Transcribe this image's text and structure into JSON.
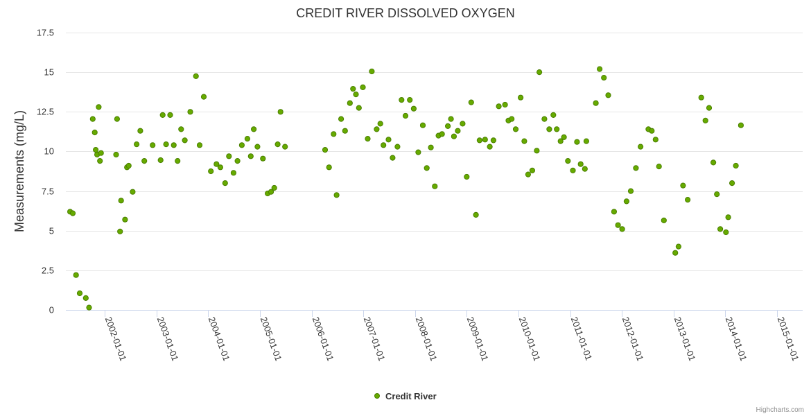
{
  "chart_data": {
    "type": "scatter",
    "title": "CREDIT RIVER DISSOLVED OXYGEN",
    "ylabel": "Measurements (mg/L)",
    "xlabel": "",
    "ylim": [
      0,
      17.5
    ],
    "xlim": [
      "2001-04-01",
      "2015-07-01"
    ],
    "yticks": [
      "0",
      "2.5",
      "5",
      "7.5",
      "10",
      "12.5",
      "15",
      "17.5"
    ],
    "ytick_values": [
      0,
      2.5,
      5,
      7.5,
      10,
      12.5,
      15,
      17.5
    ],
    "xticks": [
      "2002-01-01",
      "2003-01-01",
      "2004-01-01",
      "2005-01-01",
      "2006-01-01",
      "2007-01-01",
      "2008-01-01",
      "2009-01-01",
      "2010-01-01",
      "2011-01-01",
      "2012-01-01",
      "2013-01-01",
      "2014-01-01",
      "2015-01-01"
    ],
    "grid": true,
    "legend_placement": "bottom-center",
    "color": "#66aa00",
    "series": [
      {
        "name": "Credit River",
        "points": [
          [
            "2001-05-01",
            6.2
          ],
          [
            "2001-05-20",
            6.1
          ],
          [
            "2001-06-12",
            2.2
          ],
          [
            "2001-07-08",
            1.05
          ],
          [
            "2001-08-20",
            0.75
          ],
          [
            "2001-09-12",
            0.15
          ],
          [
            "2001-10-08",
            12.05
          ],
          [
            "2001-10-22",
            11.2
          ],
          [
            "2001-10-29",
            10.1
          ],
          [
            "2001-11-08",
            9.8
          ],
          [
            "2001-11-19",
            12.8
          ],
          [
            "2001-11-28",
            9.4
          ],
          [
            "2001-12-05",
            9.9
          ],
          [
            "2002-03-22",
            9.8
          ],
          [
            "2002-03-29",
            12.05
          ],
          [
            "2002-04-19",
            4.95
          ],
          [
            "2002-04-26",
            6.9
          ],
          [
            "2002-05-24",
            5.7
          ],
          [
            "2002-06-07",
            9.0
          ],
          [
            "2002-06-19",
            9.1
          ],
          [
            "2002-07-17",
            7.45
          ],
          [
            "2002-08-14",
            10.45
          ],
          [
            "2002-09-09",
            11.3
          ],
          [
            "2002-10-07",
            9.4
          ],
          [
            "2002-12-05",
            10.4
          ],
          [
            "2003-01-30",
            9.45
          ],
          [
            "2003-02-14",
            12.3
          ],
          [
            "2003-03-10",
            10.45
          ],
          [
            "2003-04-08",
            12.3
          ],
          [
            "2003-05-03",
            10.4
          ],
          [
            "2003-05-30",
            9.4
          ],
          [
            "2003-06-24",
            11.4
          ],
          [
            "2003-07-20",
            10.7
          ],
          [
            "2003-08-28",
            12.5
          ],
          [
            "2003-10-07",
            14.75
          ],
          [
            "2003-11-02",
            10.4
          ],
          [
            "2003-12-01",
            13.45
          ],
          [
            "2004-01-20",
            8.75
          ],
          [
            "2004-02-29",
            9.2
          ],
          [
            "2004-03-27",
            9.0
          ],
          [
            "2004-04-30",
            8.0
          ],
          [
            "2004-05-27",
            9.7
          ],
          [
            "2004-06-28",
            8.65
          ],
          [
            "2004-07-26",
            9.4
          ],
          [
            "2004-08-26",
            10.4
          ],
          [
            "2004-10-04",
            10.8
          ],
          [
            "2004-10-28",
            9.7
          ],
          [
            "2004-11-18",
            11.4
          ],
          [
            "2004-12-14",
            10.3
          ],
          [
            "2005-01-22",
            9.55
          ],
          [
            "2005-02-24",
            7.35
          ],
          [
            "2005-03-20",
            7.45
          ],
          [
            "2005-04-12",
            7.7
          ],
          [
            "2005-05-06",
            10.45
          ],
          [
            "2005-05-26",
            12.5
          ],
          [
            "2005-06-27",
            10.3
          ],
          [
            "2006-04-06",
            10.1
          ],
          [
            "2006-05-04",
            9.0
          ],
          [
            "2006-06-05",
            11.1
          ],
          [
            "2006-06-26",
            7.25
          ],
          [
            "2006-07-28",
            12.05
          ],
          [
            "2006-08-25",
            11.3
          ],
          [
            "2006-09-28",
            13.05
          ],
          [
            "2006-10-20",
            13.95
          ],
          [
            "2006-11-10",
            13.6
          ],
          [
            "2006-12-01",
            12.75
          ],
          [
            "2006-12-29",
            14.05
          ],
          [
            "2007-02-01",
            10.8
          ],
          [
            "2007-03-02",
            15.05
          ],
          [
            "2007-04-05",
            11.4
          ],
          [
            "2007-05-01",
            11.75
          ],
          [
            "2007-05-23",
            10.4
          ],
          [
            "2007-06-28",
            10.75
          ],
          [
            "2007-07-27",
            9.6
          ],
          [
            "2007-08-30",
            10.3
          ],
          [
            "2007-09-28",
            13.25
          ],
          [
            "2007-10-26",
            12.25
          ],
          [
            "2007-11-25",
            13.25
          ],
          [
            "2007-12-23",
            12.7
          ],
          [
            "2008-01-24",
            9.95
          ],
          [
            "2008-02-25",
            11.65
          ],
          [
            "2008-03-24",
            8.95
          ],
          [
            "2008-04-22",
            10.25
          ],
          [
            "2008-05-20",
            7.8
          ],
          [
            "2008-06-15",
            11.0
          ],
          [
            "2008-07-10",
            11.1
          ],
          [
            "2008-08-20",
            11.6
          ],
          [
            "2008-09-11",
            12.05
          ],
          [
            "2008-10-02",
            10.95
          ],
          [
            "2008-10-29",
            11.3
          ],
          [
            "2008-12-02",
            11.75
          ],
          [
            "2008-12-31",
            8.4
          ],
          [
            "2009-02-01",
            13.1
          ],
          [
            "2009-03-06",
            6.0
          ],
          [
            "2009-04-01",
            10.7
          ],
          [
            "2009-05-10",
            10.75
          ],
          [
            "2009-06-12",
            10.3
          ],
          [
            "2009-07-08",
            10.7
          ],
          [
            "2009-08-15",
            12.85
          ],
          [
            "2009-09-28",
            12.95
          ],
          [
            "2009-10-22",
            11.95
          ],
          [
            "2009-11-14",
            12.05
          ],
          [
            "2009-12-12",
            11.4
          ],
          [
            "2010-01-16",
            13.4
          ],
          [
            "2010-02-11",
            10.65
          ],
          [
            "2010-03-10",
            8.55
          ],
          [
            "2010-04-08",
            8.8
          ],
          [
            "2010-05-10",
            10.05
          ],
          [
            "2010-05-28",
            15.0
          ],
          [
            "2010-07-03",
            12.05
          ],
          [
            "2010-08-06",
            11.4
          ],
          [
            "2010-09-04",
            12.3
          ],
          [
            "2010-09-28",
            11.4
          ],
          [
            "2010-10-25",
            10.65
          ],
          [
            "2010-11-18",
            10.9
          ],
          [
            "2010-12-16",
            9.4
          ],
          [
            "2011-01-20",
            8.8
          ],
          [
            "2011-02-18",
            10.6
          ],
          [
            "2011-03-16",
            9.2
          ],
          [
            "2011-04-15",
            8.9
          ],
          [
            "2011-04-25",
            10.65
          ],
          [
            "2011-07-01",
            13.05
          ],
          [
            "2011-07-28",
            15.2
          ],
          [
            "2011-08-27",
            14.65
          ],
          [
            "2011-09-27",
            13.55
          ],
          [
            "2011-11-07",
            6.2
          ],
          [
            "2011-12-05",
            5.35
          ],
          [
            "2012-01-03",
            5.1
          ],
          [
            "2012-02-03",
            6.85
          ],
          [
            "2012-03-04",
            7.5
          ],
          [
            "2012-04-09",
            8.95
          ],
          [
            "2012-05-12",
            10.3
          ],
          [
            "2012-07-06",
            11.4
          ],
          [
            "2012-07-30",
            11.3
          ],
          [
            "2012-08-26",
            10.75
          ],
          [
            "2012-09-19",
            9.05
          ],
          [
            "2012-10-24",
            5.65
          ],
          [
            "2013-01-12",
            3.6
          ],
          [
            "2013-02-04",
            4.0
          ],
          [
            "2013-03-08",
            7.85
          ],
          [
            "2013-04-10",
            6.95
          ],
          [
            "2013-07-15",
            13.4
          ],
          [
            "2013-08-13",
            11.95
          ],
          [
            "2013-09-08",
            12.75
          ],
          [
            "2013-10-08",
            9.3
          ],
          [
            "2013-11-02",
            7.3
          ],
          [
            "2013-11-26",
            5.1
          ],
          [
            "2014-01-05",
            4.9
          ],
          [
            "2014-01-21",
            5.85
          ],
          [
            "2014-02-17",
            8.0
          ],
          [
            "2014-03-16",
            9.1
          ],
          [
            "2014-04-21",
            11.65
          ]
        ]
      }
    ]
  },
  "credits": "Highcharts.com"
}
